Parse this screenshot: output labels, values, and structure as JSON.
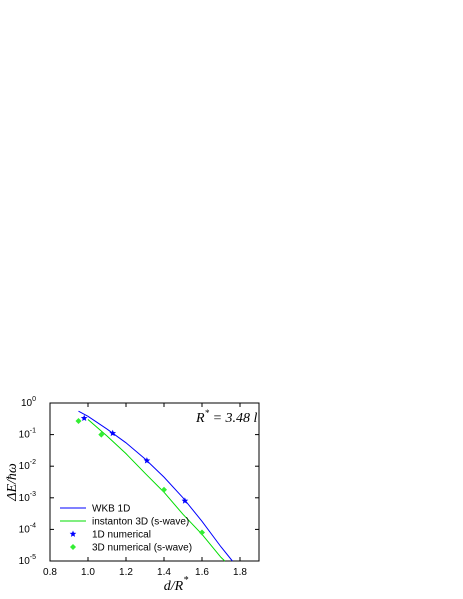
{
  "chart_data": {
    "type": "line",
    "x_label": "d/R",
    "x_label_sup": "*",
    "y_label": "ΔE/ħω",
    "annotation": {
      "text": "R",
      "sup": "*",
      "rest": " = 3.48 l"
    },
    "xlim": [
      0.8,
      1.9
    ],
    "xticks": [
      {
        "value": 0.8,
        "label": "0.8"
      },
      {
        "value": 1.0,
        "label": "1.0"
      },
      {
        "value": 1.2,
        "label": "1.2"
      },
      {
        "value": 1.4,
        "label": "1.4"
      },
      {
        "value": 1.6,
        "label": "1.6"
      },
      {
        "value": 1.8,
        "label": "1.8"
      }
    ],
    "ylim": [
      1e-05,
      1
    ],
    "log_y": true,
    "yticks": [
      {
        "value": 1e-05,
        "label": "10",
        "exponent": "-5"
      },
      {
        "value": 0.0001,
        "label": "10",
        "exponent": "-4"
      },
      {
        "value": 0.001,
        "label": "10",
        "exponent": "-3"
      },
      {
        "value": 0.01,
        "label": "10",
        "exponent": "-2"
      },
      {
        "value": 0.1,
        "label": "10",
        "exponent": "-1"
      },
      {
        "value": 1,
        "label": "10",
        "exponent": "0"
      }
    ],
    "legend": "lower left",
    "series": [
      {
        "name": "WKB 1D",
        "color": "#0000ff",
        "style": "line",
        "x": [
          0.95,
          1.0,
          1.1,
          1.2,
          1.3,
          1.4,
          1.5,
          1.6,
          1.7,
          1.76
        ],
        "values": [
          0.55,
          0.38,
          0.15,
          0.055,
          0.017,
          0.0045,
          0.001,
          0.00018,
          2.8e-05,
          1e-05
        ]
      },
      {
        "name": "instanton 3D (s-wave)",
        "color": "#00dd00",
        "style": "line",
        "x": [
          1.0,
          1.1,
          1.2,
          1.3,
          1.4,
          1.5,
          1.6,
          1.7,
          1.72
        ],
        "values": [
          0.3,
          0.09,
          0.025,
          0.006,
          0.0015,
          0.0003,
          7e-05,
          1.3e-05,
          1e-05
        ]
      },
      {
        "name": "1D numerical",
        "color": "#0000ff",
        "style": "star",
        "x": [
          0.98,
          1.13,
          1.31,
          1.51
        ],
        "values": [
          0.33,
          0.11,
          0.015,
          0.0008
        ]
      },
      {
        "name": "3D numerical (s-wave)",
        "color": "#33ee33",
        "style": "diamond",
        "x": [
          0.95,
          1.07,
          1.4,
          1.6
        ],
        "values": [
          0.27,
          0.1,
          0.0018,
          8e-05
        ]
      }
    ]
  }
}
